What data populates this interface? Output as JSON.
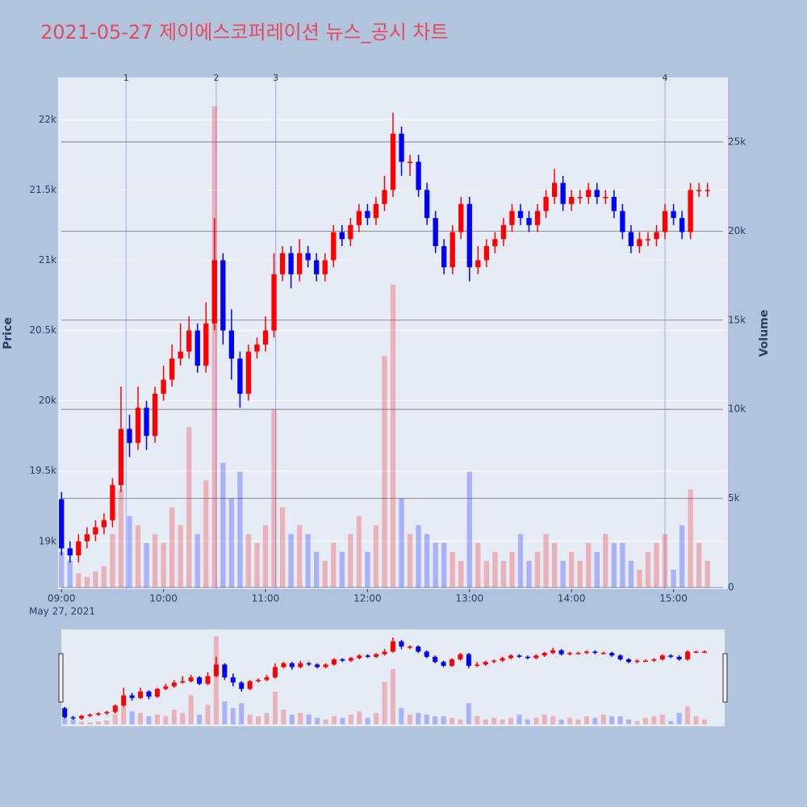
{
  "chart_data": {
    "type": "candlestick",
    "title": "2021-05-27 제이에스코퍼레이션 뉴스_공시 차트",
    "y_title": "Price",
    "y2_title": "Volume",
    "x_subtitle": "May 27, 2021",
    "increasing_color": "#ff0000",
    "decreasing_color": "#0000ff",
    "grid": true,
    "rangeslider": true,
    "x": [
      "09:00",
      "09:05",
      "09:10",
      "09:15",
      "09:20",
      "09:25",
      "09:30",
      "09:35",
      "09:40",
      "09:45",
      "09:50",
      "09:55",
      "10:00",
      "10:05",
      "10:10",
      "10:15",
      "10:20",
      "10:25",
      "10:30",
      "10:35",
      "10:40",
      "10:45",
      "10:50",
      "10:55",
      "11:00",
      "11:05",
      "11:10",
      "11:15",
      "11:20",
      "11:25",
      "11:30",
      "11:35",
      "11:40",
      "11:45",
      "11:50",
      "11:55",
      "12:00",
      "12:05",
      "12:10",
      "12:15",
      "12:20",
      "12:25",
      "12:30",
      "12:35",
      "12:40",
      "12:45",
      "12:50",
      "12:55",
      "13:00",
      "13:05",
      "13:10",
      "13:15",
      "13:20",
      "13:25",
      "13:30",
      "13:35",
      "13:40",
      "13:45",
      "13:50",
      "13:55",
      "14:00",
      "14:05",
      "14:10",
      "14:15",
      "14:20",
      "14:25",
      "14:30",
      "14:35",
      "14:40",
      "14:45",
      "14:50",
      "14:55",
      "15:00",
      "15:05",
      "15:10",
      "15:15",
      "15:20"
    ],
    "open": [
      19300,
      18950,
      18900,
      19000,
      19050,
      19100,
      19150,
      19400,
      19800,
      19700,
      19950,
      19750,
      20050,
      20150,
      20300,
      20350,
      20500,
      20250,
      20550,
      21000,
      20500,
      20300,
      20050,
      20350,
      20400,
      20500,
      20900,
      21050,
      20900,
      21050,
      21000,
      20900,
      21000,
      21200,
      21150,
      21250,
      21350,
      21300,
      21400,
      21500,
      21900,
      21700,
      21700,
      21500,
      21300,
      21100,
      20950,
      21200,
      21400,
      20950,
      21000,
      21100,
      21150,
      21250,
      21350,
      21300,
      21250,
      21350,
      21450,
      21550,
      21400,
      21450,
      21450,
      21500,
      21450,
      21450,
      21350,
      21200,
      21100,
      21150,
      21150,
      21200,
      21350,
      21300,
      21200,
      21500,
      21500
    ],
    "high": [
      19350,
      19000,
      19050,
      19100,
      19150,
      19200,
      19450,
      20100,
      19900,
      20100,
      20000,
      20100,
      20250,
      20400,
      20550,
      20600,
      20550,
      20700,
      21300,
      21050,
      20650,
      20350,
      20400,
      20450,
      20600,
      21050,
      21100,
      21100,
      21150,
      21100,
      21050,
      21050,
      21250,
      21250,
      21300,
      21400,
      21400,
      21450,
      21600,
      22050,
      21950,
      21750,
      21750,
      21550,
      21350,
      21150,
      21250,
      21450,
      21450,
      21100,
      21150,
      21200,
      21300,
      21400,
      21400,
      21350,
      21400,
      21500,
      21650,
      21600,
      21500,
      21500,
      21550,
      21550,
      21500,
      21500,
      21400,
      21250,
      21200,
      21200,
      21250,
      21400,
      21400,
      21350,
      21550,
      21550,
      21550
    ],
    "low": [
      18900,
      18850,
      18850,
      18950,
      19000,
      19050,
      19100,
      19350,
      19600,
      19650,
      19650,
      19700,
      20000,
      20100,
      20250,
      20300,
      20200,
      20200,
      20500,
      20400,
      20150,
      19950,
      20000,
      20300,
      20350,
      20450,
      20850,
      20800,
      20850,
      20950,
      20850,
      20850,
      20950,
      21100,
      21100,
      21200,
      21250,
      21250,
      21350,
      21450,
      21600,
      21600,
      21450,
      21250,
      21050,
      20900,
      20900,
      21150,
      20850,
      20900,
      20950,
      21050,
      21100,
      21200,
      21250,
      21200,
      21200,
      21300,
      21400,
      21350,
      21350,
      21400,
      21400,
      21400,
      21400,
      21300,
      21150,
      21050,
      21050,
      21100,
      21100,
      21150,
      21250,
      21150,
      21150,
      21450,
      21450
    ],
    "close": [
      18950,
      18900,
      19000,
      19050,
      19100,
      19150,
      19400,
      19800,
      19700,
      19950,
      19750,
      20050,
      20150,
      20300,
      20350,
      20500,
      20250,
      20550,
      21000,
      20500,
      20300,
      20050,
      20350,
      20400,
      20500,
      20900,
      21050,
      20900,
      21050,
      21000,
      20900,
      21000,
      21200,
      21150,
      21250,
      21350,
      21300,
      21400,
      21500,
      21900,
      21700,
      21700,
      21500,
      21300,
      21100,
      20950,
      21200,
      21400,
      20950,
      21000,
      21100,
      21150,
      21250,
      21350,
      21300,
      21250,
      21350,
      21450,
      21550,
      21400,
      21450,
      21450,
      21500,
      21450,
      21450,
      21350,
      21200,
      21100,
      21150,
      21150,
      21200,
      21350,
      21300,
      21200,
      21500,
      21500,
      21500
    ],
    "volume": [
      2000,
      1500,
      800,
      600,
      900,
      1200,
      3000,
      5500,
      4000,
      3500,
      2500,
      3000,
      2500,
      4500,
      3500,
      9000,
      3000,
      6000,
      27000,
      7000,
      5000,
      6500,
      3000,
      2500,
      3500,
      10000,
      4500,
      3000,
      3500,
      3000,
      2000,
      1500,
      2500,
      2000,
      3000,
      4000,
      2000,
      3500,
      13000,
      17000,
      5000,
      3000,
      3500,
      3000,
      2500,
      2500,
      2000,
      1500,
      6500,
      2500,
      1500,
      2000,
      1500,
      2000,
      3000,
      1500,
      2000,
      3000,
      2500,
      1500,
      2000,
      1500,
      2500,
      2000,
      3000,
      2500,
      2500,
      1500,
      1000,
      2000,
      2500,
      3000,
      1000,
      3500,
      5500,
      2500,
      1500
    ],
    "xlim": [
      "08:58",
      "15:32"
    ],
    "xticks": [
      "09:00",
      "10:00",
      "11:00",
      "12:00",
      "13:00",
      "14:00",
      "15:00"
    ],
    "ylim": [
      18660,
      22300
    ],
    "yticks": [
      {
        "value": 19000,
        "label": "19k"
      },
      {
        "value": 19500,
        "label": "19.5k"
      },
      {
        "value": 20000,
        "label": "20k"
      },
      {
        "value": 20500,
        "label": "20.5k"
      },
      {
        "value": 21000,
        "label": "21k"
      },
      {
        "value": 21500,
        "label": "21.5k"
      },
      {
        "value": 22000,
        "label": "22k"
      }
    ],
    "y2lim": [
      -90,
      28620
    ],
    "y2ticks": [
      0,
      {
        "value": 5000,
        "label": "5k"
      },
      {
        "value": 10000,
        "label": "10k"
      },
      {
        "value": 15000,
        "label": "15k"
      },
      {
        "value": 20000,
        "label": "20k"
      },
      {
        "value": 25000,
        "label": "25k"
      }
    ],
    "annotations": [
      {
        "x": "09:38",
        "label": "1"
      },
      {
        "x": "10:31",
        "label": "2"
      },
      {
        "x": "11:06",
        "label": "3"
      },
      {
        "x": "14:55",
        "label": "4"
      }
    ]
  }
}
